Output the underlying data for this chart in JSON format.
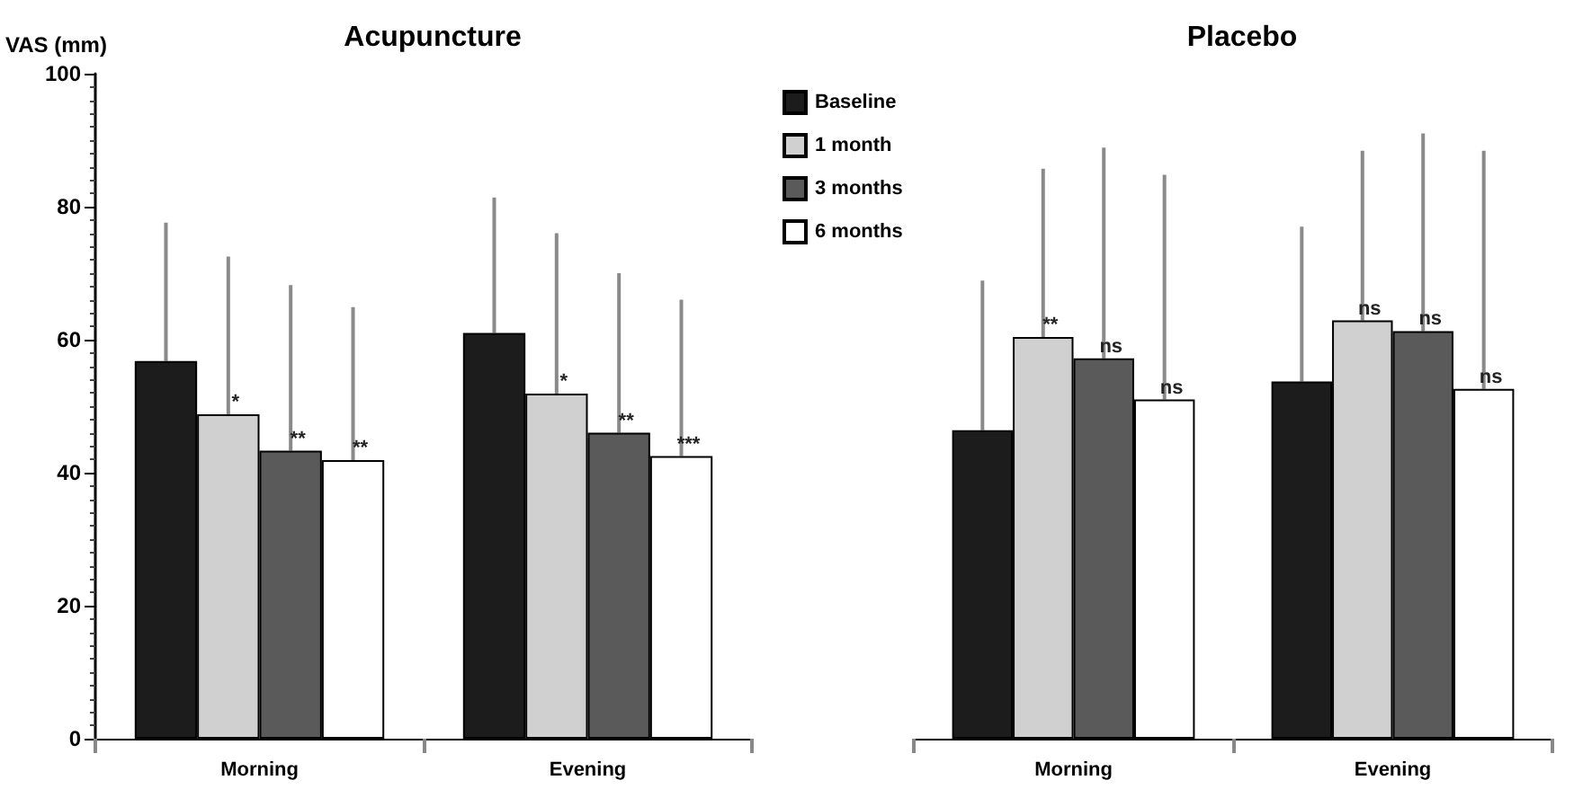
{
  "chart_data": [
    {
      "type": "bar",
      "title": "Acupuncture",
      "ylabel": "VAS (mm)",
      "categories": [
        "Morning",
        "Evening"
      ],
      "ylim": [
        0,
        100
      ],
      "yticks": [
        0,
        20,
        40,
        60,
        80,
        100
      ],
      "legend": false,
      "series": [
        {
          "color": "#1c1c1c",
          "values": [
            56.8,
            61
          ],
          "errors": [
            [
              56.8,
              77.6
            ],
            [
              61,
              81.4
            ]
          ]
        },
        {
          "color": "#d0d0d0",
          "values": [
            48.8,
            51.9
          ],
          "errors": [
            [
              48.8,
              72.5
            ],
            [
              51.9,
              76
            ]
          ],
          "value_labels": [
            "*",
            "*"
          ]
        },
        {
          "color": "#5a5a5a",
          "values": [
            43.3,
            46
          ],
          "errors": [
            [
              43.3,
              68.2
            ],
            [
              46,
              70
            ]
          ],
          "value_labels": [
            "**",
            "**"
          ]
        },
        {
          "color": "#ffffff",
          "values": [
            41.9,
            42.5
          ],
          "errors": [
            [
              41.9,
              64.9
            ],
            [
              42.5,
              66
            ]
          ],
          "value_labels": [
            "**",
            "***"
          ]
        }
      ]
    },
    {
      "type": "bar",
      "title": "Placebo",
      "categories": [
        "Morning",
        "Evening"
      ],
      "ylim": [
        0,
        100
      ],
      "tick_labels": "x",
      "legend": "top left",
      "series": [
        {
          "name": "Baseline",
          "color": "#1c1c1c",
          "values": [
            46.4,
            53.7
          ],
          "errors": [
            [
              46.4,
              68.9
            ],
            [
              53.7,
              77
            ]
          ]
        },
        {
          "name": "1 month",
          "color": "#d0d0d0",
          "values": [
            60.4,
            62.9
          ],
          "errors": [
            [
              60.4,
              85.7
            ],
            [
              62.9,
              88.4
            ]
          ],
          "value_labels": [
            "**",
            "ns"
          ]
        },
        {
          "name": "3 months",
          "color": "#5a5a5a",
          "values": [
            57.2,
            61.3
          ],
          "errors": [
            [
              57.2,
              88.9
            ],
            [
              61.3,
              91
            ]
          ],
          "value_labels": [
            "ns",
            "ns"
          ]
        },
        {
          "name": "6 months",
          "color": "#ffffff",
          "values": [
            51,
            52.6
          ],
          "errors": [
            [
              51,
              84.8
            ],
            [
              52.6,
              88.4
            ]
          ],
          "value_labels": [
            "ns",
            "ns"
          ]
        }
      ]
    }
  ]
}
